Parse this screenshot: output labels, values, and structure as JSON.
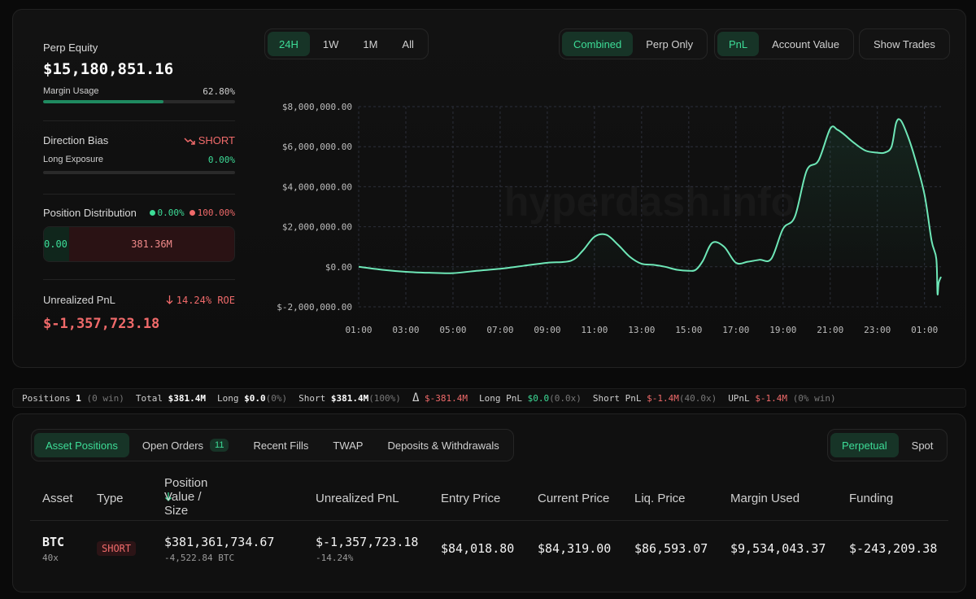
{
  "summary": {
    "equity_label": "Perp Equity",
    "equity_value": "$15,180,851.16",
    "margin_label": "Margin Usage",
    "margin_value": "62.80%",
    "margin_fraction": 0.628,
    "direction_label": "Direction Bias",
    "direction_icon": "trend-down-icon",
    "direction_value": "SHORT",
    "long_exposure_label": "Long Exposure",
    "long_exposure_value": "0.00%",
    "long_exposure_fraction": 0.0,
    "distribution_label": "Position Distribution",
    "dist_long_pct": "0.00%",
    "dist_short_pct": "100.00%",
    "dist_long_value": "0.00",
    "dist_short_value": "381.36M",
    "upnl_label": "Unrealized PnL",
    "roe_icon": "arrow-down-icon",
    "roe_value": "14.24% ROE",
    "upnl_value": "$-1,357,723.18"
  },
  "controls": {
    "ranges": [
      "24H",
      "1W",
      "1M",
      "All"
    ],
    "range_active": 0,
    "modes": [
      "Combined",
      "Perp Only"
    ],
    "mode_active": 0,
    "metrics": [
      "PnL",
      "Account Value"
    ],
    "metric_active": 0,
    "show_trades": "Show Trades"
  },
  "chart_data": {
    "type": "line",
    "watermark": "hyperdash.info",
    "x_ticks": [
      "01:00",
      "03:00",
      "05:00",
      "07:00",
      "09:00",
      "11:00",
      "13:00",
      "15:00",
      "17:00",
      "19:00",
      "21:00",
      "23:00",
      "01:00"
    ],
    "y_ticks": [
      "$8,000,000.00",
      "$6,000,000.00",
      "$4,000,000.00",
      "$2,000,000.00",
      "$0.00",
      "$-2,000,000.00"
    ],
    "ylim": [
      -2000000,
      8000000
    ],
    "xlim": [
      0,
      24.7
    ],
    "grid": true,
    "line_color": "#6ee7b7",
    "x": [
      0,
      1,
      2,
      3,
      4,
      5,
      6,
      7,
      8,
      9,
      9.5,
      10,
      10.5,
      11,
      11.5,
      12,
      12.5,
      13,
      13.5,
      14,
      14.3,
      14.6,
      15,
      15.5,
      16,
      16.5,
      17,
      17.5,
      18,
      18.5,
      19,
      19.5,
      20,
      20.3,
      20.6,
      21,
      21.5,
      22,
      22.3,
      22.6,
      22.8,
      23,
      23.3,
      23.6,
      24,
      24.3,
      24.5,
      24.55,
      24.6,
      24.7
    ],
    "y": [
      0,
      -150000,
      -250000,
      -300000,
      -320000,
      -200000,
      -100000,
      50000,
      200000,
      300000,
      800000,
      1500000,
      1600000,
      1100000,
      500000,
      150000,
      100000,
      0,
      -150000,
      -200000,
      -150000,
      300000,
      1200000,
      1000000,
      200000,
      250000,
      350000,
      400000,
      1900000,
      2500000,
      4800000,
      5300000,
      6900000,
      6850000,
      6600000,
      6200000,
      5800000,
      5700000,
      5700000,
      6000000,
      7200000,
      7300000,
      6500000,
      5400000,
      3600000,
      1300000,
      400000,
      -1350000,
      -800000,
      -500000
    ]
  },
  "stats": {
    "positions_label": "Positions",
    "positions_value": "1",
    "positions_win": "(0 win)",
    "total_label": "Total",
    "total_value": "$381.4M",
    "long_label": "Long",
    "long_value": "$0.0",
    "long_pct": "(0%)",
    "short_label": "Short",
    "short_value": "$381.4M",
    "short_pct": "(100%)",
    "delta_symbol": "Δ",
    "delta_value": "$-381.4M",
    "long_pnl_label": "Long PnL",
    "long_pnl_value": "$0.0",
    "long_pnl_mult": "(0.0x)",
    "short_pnl_label": "Short PnL",
    "short_pnl_value": "$-1.4M",
    "short_pnl_mult": "(40.0x)",
    "upnl_label": "UPnL",
    "upnl_value": "$-1.4M",
    "upnl_win": "(0% win)"
  },
  "tabs": {
    "items": [
      "Asset Positions",
      "Open Orders",
      "Recent Fills",
      "TWAP",
      "Deposits & Withdrawals"
    ],
    "active": 0,
    "open_orders_count": "11",
    "market_types": [
      "Perpetual",
      "Spot"
    ],
    "market_active": 0
  },
  "table": {
    "columns": [
      "Asset",
      "Type",
      "Position Value / Size",
      "Unrealized PnL",
      "Entry Price",
      "Current Price",
      "Liq. Price",
      "Margin Used",
      "Funding"
    ],
    "sort_icon": "arrow-down-icon",
    "rows": [
      {
        "asset": "BTC",
        "leverage": "40x",
        "type": "SHORT",
        "value": "$381,361,734.67",
        "size": "-4,522.84 BTC",
        "upnl": "$-1,357,723.18",
        "upnl_pct": "-14.24%",
        "entry": "$84,018.80",
        "current": "$84,319.00",
        "liq": "$86,593.07",
        "margin": "$9,534,043.37",
        "funding": "$-243,209.38"
      }
    ]
  }
}
